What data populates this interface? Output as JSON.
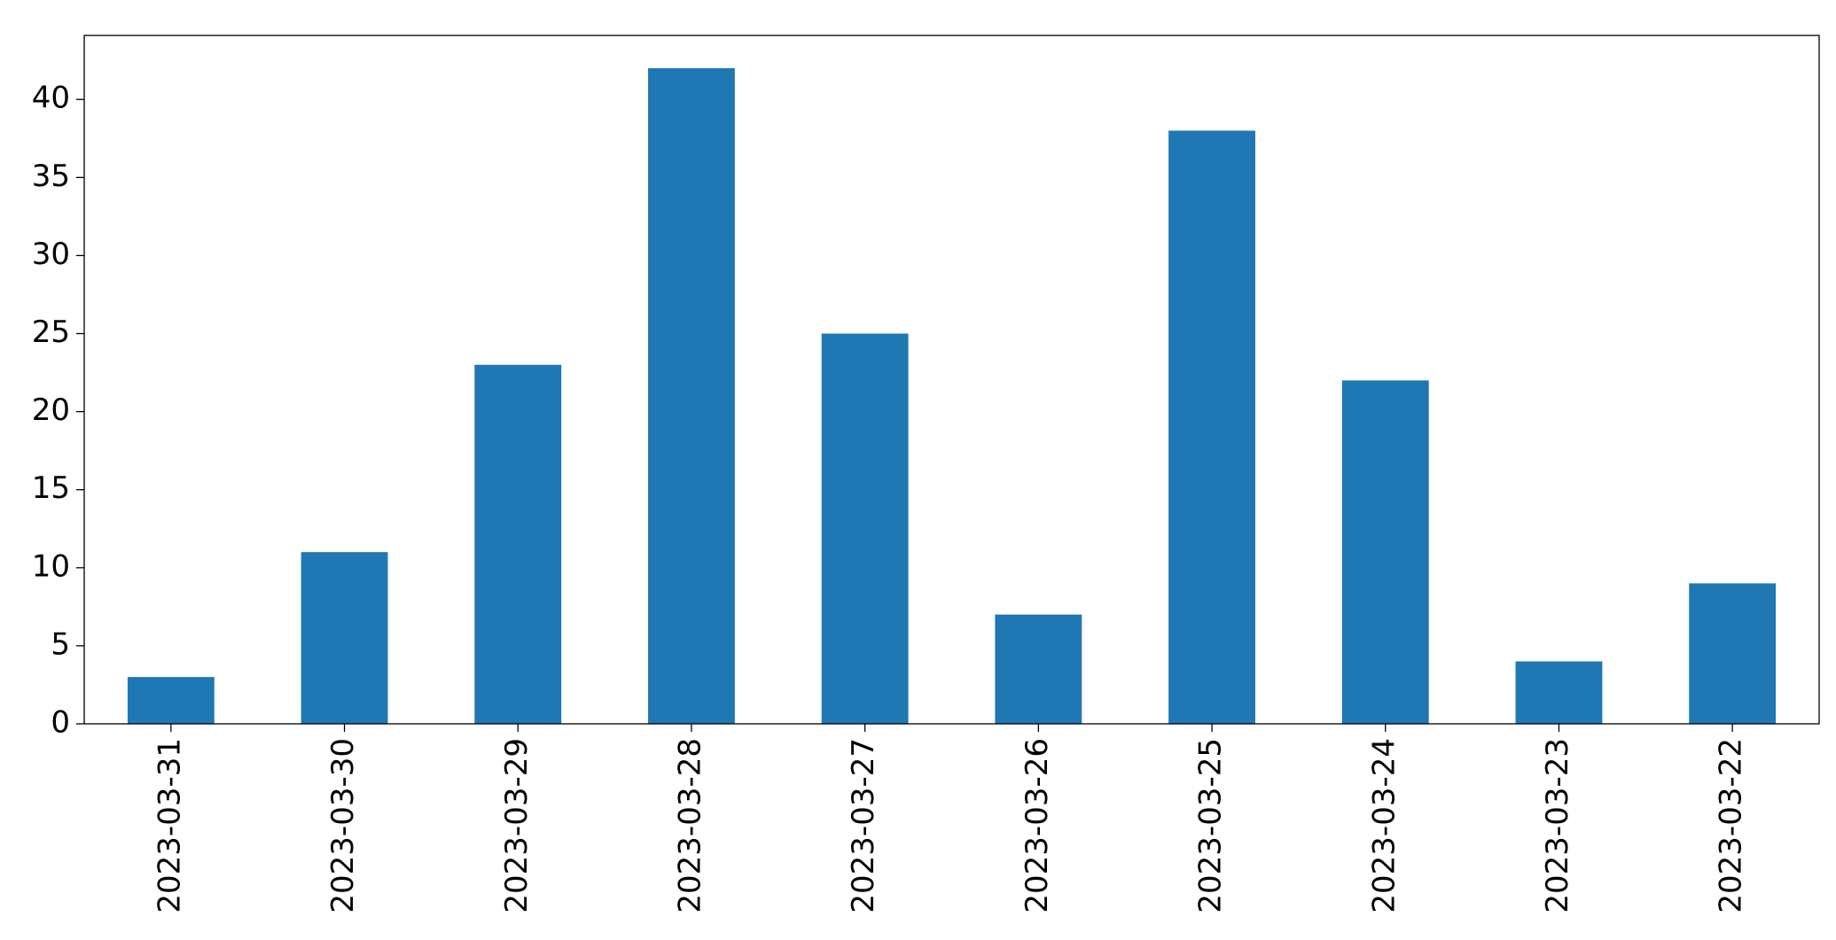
{
  "chart_data": {
    "type": "bar",
    "categories": [
      "2023-03-31",
      "2023-03-30",
      "2023-03-29",
      "2023-03-28",
      "2023-03-27",
      "2023-03-26",
      "2023-03-25",
      "2023-03-24",
      "2023-03-23",
      "2023-03-22"
    ],
    "values": [
      3,
      11,
      23,
      42,
      25,
      7,
      38,
      22,
      4,
      9
    ],
    "color": "#1f77b4",
    "ylim": [
      0,
      44.1
    ],
    "yticks": [
      0,
      5,
      10,
      15,
      20,
      25,
      30,
      35,
      40
    ],
    "grid": false
  }
}
